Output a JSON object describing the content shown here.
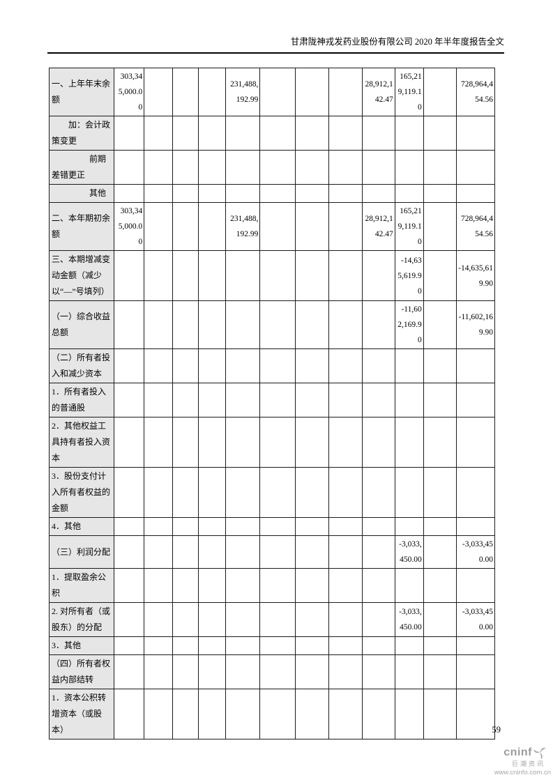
{
  "header": {
    "title": "甘肃陇神戎发药业股份有限公司 2020 年半年度报告全文"
  },
  "table": {
    "description": "statement-of-changes-in-owners-equity-continued",
    "value_column_count": 12,
    "rows": [
      {
        "label": "一、上年年末余额",
        "indent": 0,
        "values": [
          "303,345,000.00",
          "",
          "",
          "",
          "231,488,192.99",
          "",
          "",
          "",
          "28,912,142.47",
          "165,219,119.10",
          "",
          "728,964,454.56"
        ]
      },
      {
        "label": "加：会计政策变更",
        "indent": 1,
        "values": [
          "",
          "",
          "",
          "",
          "",
          "",
          "",
          "",
          "",
          "",
          "",
          ""
        ]
      },
      {
        "label": "前期差错更正",
        "indent": 2,
        "values": [
          "",
          "",
          "",
          "",
          "",
          "",
          "",
          "",
          "",
          "",
          "",
          ""
        ]
      },
      {
        "label": "其他",
        "indent": 2,
        "values": [
          "",
          "",
          "",
          "",
          "",
          "",
          "",
          "",
          "",
          "",
          "",
          ""
        ]
      },
      {
        "label": "二、本年期初余额",
        "indent": 0,
        "values": [
          "303,345,000.00",
          "",
          "",
          "",
          "231,488,192.99",
          "",
          "",
          "",
          "28,912,142.47",
          "165,219,119.10",
          "",
          "728,964,454.56"
        ]
      },
      {
        "label": "三、本期增减变动金额（减少以“—”号填列）",
        "indent": 0,
        "values": [
          "",
          "",
          "",
          "",
          "",
          "",
          "",
          "",
          "",
          "-14,635,619.90",
          "",
          "-14,635,619.90"
        ]
      },
      {
        "label": "（一）综合收益总额",
        "indent": 0,
        "values": [
          "",
          "",
          "",
          "",
          "",
          "",
          "",
          "",
          "",
          "-11,602,169.90",
          "",
          "-11,602,169.90"
        ]
      },
      {
        "label": "（二）所有者投入和减少资本",
        "indent": 0,
        "values": [
          "",
          "",
          "",
          "",
          "",
          "",
          "",
          "",
          "",
          "",
          "",
          ""
        ]
      },
      {
        "label": "1．所有者投入的普通股",
        "indent": 0,
        "values": [
          "",
          "",
          "",
          "",
          "",
          "",
          "",
          "",
          "",
          "",
          "",
          ""
        ]
      },
      {
        "label": "2．其他权益工具持有者投入资本",
        "indent": 0,
        "values": [
          "",
          "",
          "",
          "",
          "",
          "",
          "",
          "",
          "",
          "",
          "",
          ""
        ]
      },
      {
        "label": "3．股份支付计入所有者权益的金额",
        "indent": 0,
        "values": [
          "",
          "",
          "",
          "",
          "",
          "",
          "",
          "",
          "",
          "",
          "",
          ""
        ]
      },
      {
        "label": "4．其他",
        "indent": 0,
        "values": [
          "",
          "",
          "",
          "",
          "",
          "",
          "",
          "",
          "",
          "",
          "",
          ""
        ]
      },
      {
        "label": "（三）利润分配",
        "indent": 0,
        "values": [
          "",
          "",
          "",
          "",
          "",
          "",
          "",
          "",
          "",
          "-3,033,450.00",
          "",
          "-3,033,450.00"
        ]
      },
      {
        "label": "1．提取盈余公积",
        "indent": 0,
        "values": [
          "",
          "",
          "",
          "",
          "",
          "",
          "",
          "",
          "",
          "",
          "",
          ""
        ]
      },
      {
        "label": "2. 对所有者（或股东）的分配",
        "indent": 0,
        "values": [
          "",
          "",
          "",
          "",
          "",
          "",
          "",
          "",
          "",
          "-3,033,450.00",
          "",
          "-3,033,450.00"
        ]
      },
      {
        "label": "3．其他",
        "indent": 0,
        "values": [
          "",
          "",
          "",
          "",
          "",
          "",
          "",
          "",
          "",
          "",
          "",
          ""
        ]
      },
      {
        "label": "（四）所有者权益内部结转",
        "indent": 0,
        "values": [
          "",
          "",
          "",
          "",
          "",
          "",
          "",
          "",
          "",
          "",
          "",
          ""
        ]
      },
      {
        "label": "1．资本公积转增资本（或股本）",
        "indent": 0,
        "values": [
          "",
          "",
          "",
          "",
          "",
          "",
          "",
          "",
          "",
          "",
          "",
          ""
        ]
      }
    ]
  },
  "footer": {
    "page_number": "59",
    "logo": {
      "brand": "cninf",
      "subtitle": "巨潮资讯",
      "url": "www.cninfo.com.cn",
      "icon": "pinwheel-icon",
      "color": "#a0a0a0"
    }
  }
}
